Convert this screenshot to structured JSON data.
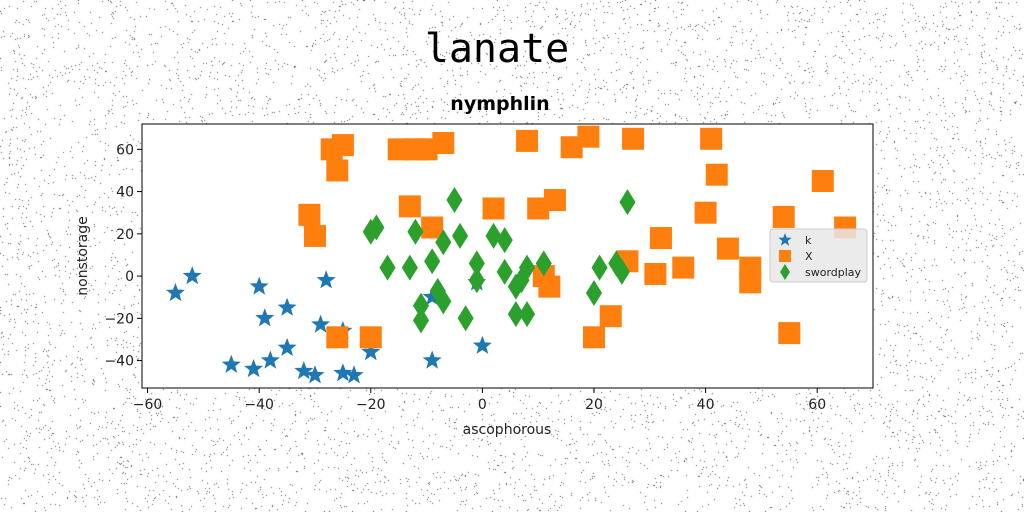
{
  "chart_data": {
    "type": "scatter",
    "title": "lanate",
    "subtitle": "nymphlin",
    "xlabel": "ascophorous",
    "ylabel": "nonstorage",
    "xlim": [
      -61,
      70
    ],
    "ylim": [
      -53,
      72
    ],
    "xticks": [
      -60,
      -40,
      -20,
      0,
      20,
      40,
      60
    ],
    "yticks": [
      -40,
      -20,
      0,
      20,
      40,
      60
    ],
    "grid": false,
    "legend_position": "center-right",
    "series": [
      {
        "name": "k",
        "marker": "star",
        "color": "#1f77b4",
        "points": [
          [
            -55,
            -8
          ],
          [
            -52,
            0
          ],
          [
            -40,
            -5
          ],
          [
            -39,
            -20
          ],
          [
            -35,
            -15
          ],
          [
            -35,
            -34
          ],
          [
            -38,
            -40
          ],
          [
            -45,
            -42
          ],
          [
            -41,
            -44
          ],
          [
            -32,
            -45
          ],
          [
            -30,
            -47
          ],
          [
            -29,
            -23
          ],
          [
            -28,
            -2
          ],
          [
            -25,
            -26
          ],
          [
            -25,
            -46
          ],
          [
            -23,
            -47
          ],
          [
            -20,
            -36
          ],
          [
            -9,
            -10
          ],
          [
            -9,
            -40
          ],
          [
            0,
            -33
          ],
          [
            -1,
            -3
          ]
        ]
      },
      {
        "name": "X",
        "marker": "square",
        "color": "#ff7f0e",
        "points": [
          [
            -27,
            60
          ],
          [
            -25,
            62
          ],
          [
            -26,
            50
          ],
          [
            -31,
            29
          ],
          [
            -30,
            19
          ],
          [
            -26,
            -29
          ],
          [
            -20,
            -29
          ],
          [
            -15,
            60
          ],
          [
            -12,
            60
          ],
          [
            -10,
            60
          ],
          [
            -7,
            63
          ],
          [
            -13,
            33
          ],
          [
            -9,
            23
          ],
          [
            2,
            32
          ],
          [
            8,
            64
          ],
          [
            10,
            32
          ],
          [
            13,
            36
          ],
          [
            16,
            61
          ],
          [
            19,
            66
          ],
          [
            27,
            65
          ],
          [
            41,
            65
          ],
          [
            42,
            48
          ],
          [
            40,
            30
          ],
          [
            32,
            18
          ],
          [
            44,
            13
          ],
          [
            48,
            4
          ],
          [
            48,
            -3
          ],
          [
            36,
            4
          ],
          [
            31,
            1
          ],
          [
            26,
            7
          ],
          [
            23,
            -19
          ],
          [
            20,
            -29
          ],
          [
            12,
            -5
          ],
          [
            11,
            0
          ],
          [
            54,
            28
          ],
          [
            55,
            -27
          ],
          [
            61,
            45
          ],
          [
            65,
            23
          ]
        ]
      },
      {
        "name": "swordplay",
        "marker": "diamond",
        "color": "#2ca02c",
        "points": [
          [
            -19,
            23
          ],
          [
            -20,
            21
          ],
          [
            -17,
            4
          ],
          [
            -13,
            4
          ],
          [
            -12,
            21
          ],
          [
            -11,
            -14
          ],
          [
            -11,
            -21
          ],
          [
            -9,
            7
          ],
          [
            -8,
            -7
          ],
          [
            -7,
            -12
          ],
          [
            -7,
            16
          ],
          [
            -5,
            36
          ],
          [
            -4,
            19
          ],
          [
            -3,
            -20
          ],
          [
            -1,
            6
          ],
          [
            -1,
            -2
          ],
          [
            2,
            19
          ],
          [
            4,
            2
          ],
          [
            4,
            17
          ],
          [
            6,
            -5
          ],
          [
            6,
            -18
          ],
          [
            7,
            -2
          ],
          [
            8,
            4
          ],
          [
            8,
            -18
          ],
          [
            11,
            6
          ],
          [
            20,
            -8
          ],
          [
            21,
            4
          ],
          [
            24,
            6
          ],
          [
            25,
            2
          ],
          [
            26,
            35
          ]
        ]
      }
    ]
  }
}
